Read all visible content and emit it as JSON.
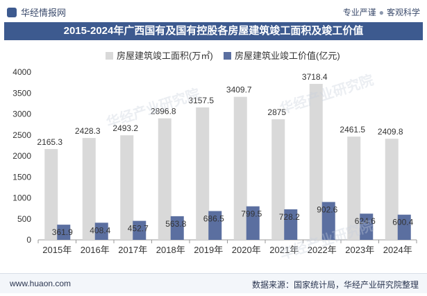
{
  "header": {
    "brand": "华经情报网",
    "tag_left": "专业严谨",
    "tag_sep": "●",
    "tag_right": "客观科学"
  },
  "chart_data": {
    "type": "bar",
    "title": "2015-2024年广西国有及国有控股各房屋建筑竣工面积及竣工价值",
    "categories": [
      "2015年",
      "2016年",
      "2017年",
      "2018年",
      "2019年",
      "2020年",
      "2021年",
      "2022年",
      "2023年",
      "2024年"
    ],
    "series": [
      {
        "name": "房屋建筑竣工面积(万㎡)",
        "color": "#d9d9d9",
        "values": [
          2165.3,
          2428.3,
          2493.2,
          2896.8,
          3157.5,
          3409.7,
          2875,
          3718.4,
          2461.5,
          2409.8
        ]
      },
      {
        "name": "房屋建筑业竣工价值(亿元)",
        "color": "#5b6fa0",
        "values": [
          361.9,
          408.4,
          452.7,
          563.8,
          686.5,
          799.5,
          728.2,
          902.6,
          624.6,
          600.4
        ]
      }
    ],
    "value_labels": [
      [
        "2165.3",
        "2428.3",
        "2493.2",
        "2896.8",
        "3157.5",
        "3409.7",
        "2875",
        "3718.4",
        "2461.5",
        "2409.8"
      ],
      [
        "361.9",
        "408.4",
        "452.7",
        "563.8",
        "686.5",
        "799.5",
        "728.2",
        "902.6",
        "624.6",
        "600.4"
      ]
    ],
    "yticks": [
      "0",
      "500",
      "1000",
      "1500",
      "2000",
      "2500",
      "3000",
      "3500",
      "4000"
    ],
    "ylim": [
      0,
      4000
    ],
    "grid": false,
    "legend": "top-center"
  },
  "footer": {
    "url": "www.huaon.com",
    "source": "数据来源：国家统计局，华经产业研究院整理"
  },
  "watermark": "华经产业研究院",
  "colors": {
    "accent": "#3d5a8f",
    "bar_area": "#d9d9d9",
    "bar_value": "#5b6fa0"
  }
}
